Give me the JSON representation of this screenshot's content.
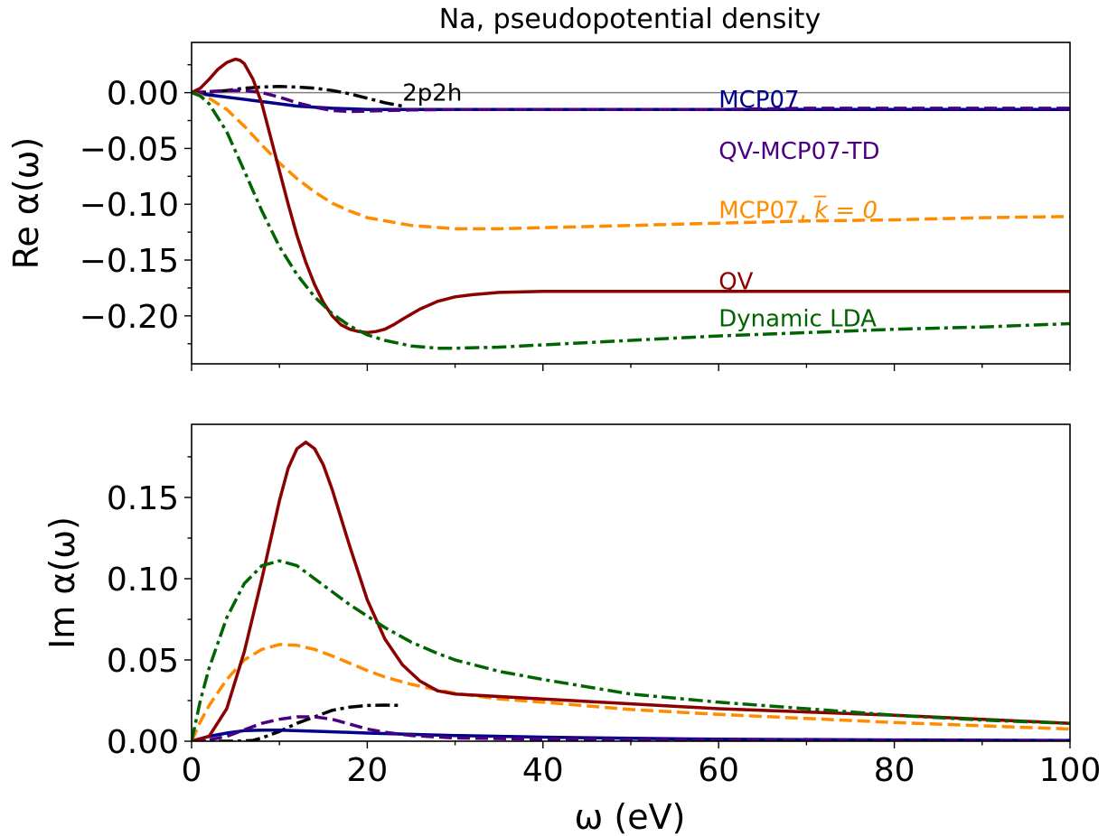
{
  "chart_data": {
    "type": "line",
    "title": "Na, pseudopotential density",
    "xlabel": "ω (eV)",
    "xlim": [
      0,
      100
    ],
    "x_ticks": [
      "0",
      "20",
      "40",
      "60",
      "80",
      "100"
    ],
    "colors": {
      "MCP07": "#00008b",
      "QV-MCP07-TD": "#4b0082",
      "MCP07_k0": "#ff8c00",
      "QV": "#8b0000",
      "DynamicLDA": "#006400",
      "2p2h": "#000000",
      "zero_line": "#808080"
    },
    "panels": [
      {
        "id": "re",
        "ylabel": "Re α(ω)",
        "ylim": [
          -0.243,
          0.045
        ],
        "y_ticks": [
          "0.00",
          "−0.05",
          "−0.10",
          "−0.15",
          "−0.20"
        ],
        "y_tick_values": [
          0.0,
          -0.05,
          -0.1,
          -0.15,
          -0.2
        ],
        "zero_line": true,
        "series": [
          {
            "key": "2p2h",
            "dash": "dashdot",
            "x": [
              0,
              2,
              4,
              6,
              8,
              10,
              12,
              14,
              16,
              18,
              20,
              22,
              24
            ],
            "y": [
              0,
              0.0005,
              0.002,
              0.004,
              0.005,
              0.0055,
              0.005,
              0.004,
              0.002,
              -0.001,
              -0.005,
              -0.009,
              -0.012
            ]
          },
          {
            "key": "MCP07",
            "dash": "solid",
            "x": [
              0,
              2,
              5,
              8,
              10,
              12,
              14,
              16,
              18,
              20,
              25,
              30,
              40,
              50,
              60,
              70,
              80,
              90,
              100
            ],
            "y": [
              0,
              -0.002,
              -0.005,
              -0.008,
              -0.01,
              -0.012,
              -0.013,
              -0.014,
              -0.0145,
              -0.015,
              -0.015,
              -0.015,
              -0.015,
              -0.015,
              -0.015,
              -0.015,
              -0.015,
              -0.015,
              -0.015
            ]
          },
          {
            "key": "QV-MCP07-TD",
            "dash": "dashed",
            "x": [
              0,
              2,
              4,
              6,
              8,
              10,
              12,
              14,
              16,
              18,
              20,
              25,
              30,
              40,
              50,
              60,
              70,
              80,
              90,
              100
            ],
            "y": [
              0,
              0.001,
              0.002,
              0.002,
              0.0,
              -0.004,
              -0.009,
              -0.013,
              -0.016,
              -0.017,
              -0.0165,
              -0.0155,
              -0.015,
              -0.015,
              -0.015,
              -0.015,
              -0.014,
              -0.014,
              -0.014,
              -0.014
            ]
          },
          {
            "key": "MCP07_k0",
            "dash": "dashed",
            "x": [
              0,
              2,
              4,
              6,
              8,
              10,
              12,
              14,
              16,
              18,
              20,
              25,
              30,
              35,
              40,
              50,
              60,
              70,
              80,
              90,
              100
            ],
            "y": [
              0,
              -0.005,
              -0.015,
              -0.03,
              -0.047,
              -0.063,
              -0.077,
              -0.089,
              -0.099,
              -0.106,
              -0.112,
              -0.119,
              -0.122,
              -0.122,
              -0.121,
              -0.119,
              -0.117,
              -0.115,
              -0.114,
              -0.112,
              -0.111
            ]
          },
          {
            "key": "QV",
            "dash": "solid",
            "x": [
              0,
              1,
              2,
              3,
              4,
              5,
              5.5,
              6,
              7,
              8,
              9,
              10,
              11,
              12,
              13,
              14,
              15,
              16,
              17,
              18,
              19,
              20,
              21,
              22,
              23,
              24,
              26,
              28,
              30,
              32,
              35,
              40,
              50,
              60,
              70,
              80,
              90,
              100
            ],
            "y": [
              0,
              0.004,
              0.012,
              0.021,
              0.027,
              0.03,
              0.029,
              0.026,
              0.012,
              -0.01,
              -0.04,
              -0.07,
              -0.1,
              -0.128,
              -0.152,
              -0.172,
              -0.188,
              -0.2,
              -0.208,
              -0.212,
              -0.214,
              -0.215,
              -0.214,
              -0.212,
              -0.208,
              -0.203,
              -0.194,
              -0.187,
              -0.183,
              -0.181,
              -0.179,
              -0.178,
              -0.178,
              -0.178,
              -0.178,
              -0.178,
              -0.178,
              -0.178
            ]
          },
          {
            "key": "DynamicLDA",
            "dash": "dashdot",
            "x": [
              0,
              1,
              2,
              4,
              6,
              8,
              10,
              12,
              14,
              16,
              18,
              20,
              22,
              25,
              28,
              30,
              35,
              40,
              50,
              60,
              70,
              80,
              90,
              100
            ],
            "y": [
              0,
              -0.003,
              -0.01,
              -0.035,
              -0.07,
              -0.106,
              -0.138,
              -0.163,
              -0.183,
              -0.198,
              -0.209,
              -0.217,
              -0.222,
              -0.227,
              -0.229,
              -0.229,
              -0.228,
              -0.226,
              -0.222,
              -0.218,
              -0.215,
              -0.212,
              -0.21,
              -0.207
            ]
          }
        ],
        "labels": [
          {
            "key": "2p2h",
            "text": "2p2h",
            "x": 24,
            "y": 0.0
          },
          {
            "key": "MCP07",
            "text": "MCP07",
            "x": 60,
            "y": -0.006
          },
          {
            "key": "QV-MCP07-TD",
            "text": "QV-MCP07-TD",
            "x": 60,
            "y": -0.052
          },
          {
            "key": "MCP07_k0",
            "text": "MCP07, ",
            "math": "k̅ = 0",
            "x": 60,
            "y": -0.105
          },
          {
            "key": "QV",
            "text": "QV",
            "x": 60,
            "y": -0.169
          },
          {
            "key": "DynamicLDA",
            "text": "Dynamic LDA",
            "x": 60,
            "y": -0.202
          }
        ]
      },
      {
        "id": "im",
        "ylabel": "Im α(ω)",
        "ylim": [
          0.0,
          0.195
        ],
        "y_ticks": [
          "0.00",
          "0.05",
          "0.10",
          "0.15"
        ],
        "y_tick_values": [
          0.0,
          0.05,
          0.1,
          0.15
        ],
        "zero_line": false,
        "series": [
          {
            "key": "2p2h",
            "dash": "dashdot",
            "x": [
              0,
              5,
              7,
              8,
              10,
              12,
              14,
              16,
              18,
              20,
              22,
              24
            ],
            "y": [
              0,
              0,
              0.0005,
              0.002,
              0.006,
              0.011,
              0.015,
              0.019,
              0.021,
              0.022,
              0.0222,
              0.022
            ]
          },
          {
            "key": "MCP07",
            "dash": "solid",
            "x": [
              0,
              2,
              4,
              6,
              8,
              10,
              15,
              20,
              30,
              40,
              50,
              60,
              80,
              100
            ],
            "y": [
              0,
              0.003,
              0.005,
              0.0065,
              0.0068,
              0.0068,
              0.006,
              0.005,
              0.0035,
              0.0025,
              0.0018,
              0.0012,
              0.0008,
              0.0005
            ]
          },
          {
            "key": "QV-MCP07-TD",
            "dash": "dashed",
            "x": [
              0,
              2,
              4,
              6,
              8,
              10,
              12,
              14,
              16,
              18,
              20,
              22,
              25,
              30,
              40,
              60,
              80,
              100
            ],
            "y": [
              0,
              0.0008,
              0.003,
              0.007,
              0.011,
              0.0135,
              0.015,
              0.015,
              0.0135,
              0.0105,
              0.0075,
              0.0055,
              0.0035,
              0.002,
              0.0012,
              0.0008,
              0.0005,
              0.0004
            ]
          },
          {
            "key": "MCP07_k0",
            "dash": "dashed",
            "x": [
              0,
              1,
              2,
              4,
              6,
              8,
              10,
              12,
              14,
              16,
              18,
              20,
              22,
              25,
              28,
              30,
              35,
              40,
              50,
              60,
              70,
              80,
              90,
              100
            ],
            "y": [
              0,
              0.012,
              0.022,
              0.038,
              0.05,
              0.0565,
              0.0595,
              0.059,
              0.0565,
              0.0525,
              0.048,
              0.0435,
              0.0395,
              0.035,
              0.0315,
              0.0295,
              0.026,
              0.024,
              0.0195,
              0.0165,
              0.014,
              0.0115,
              0.0095,
              0.0075
            ]
          },
          {
            "key": "QV",
            "dash": "solid",
            "x": [
              0,
              2,
              4,
              6,
              8,
              10,
              11,
              12,
              13,
              14,
              15,
              16,
              18,
              20,
              22,
              24,
              26,
              28,
              30,
              35,
              40,
              50,
              60,
              70,
              80,
              90,
              100
            ],
            "y": [
              0,
              0.003,
              0.02,
              0.055,
              0.1,
              0.148,
              0.168,
              0.18,
              0.184,
              0.18,
              0.17,
              0.155,
              0.12,
              0.087,
              0.063,
              0.047,
              0.037,
              0.031,
              0.029,
              0.0275,
              0.026,
              0.023,
              0.02,
              0.018,
              0.016,
              0.0135,
              0.011
            ]
          },
          {
            "key": "DynamicLDA",
            "dash": "dashdot",
            "x": [
              0,
              1,
              2,
              4,
              6,
              8,
              10,
              12,
              14,
              16,
              18,
              20,
              22,
              25,
              28,
              30,
              35,
              40,
              50,
              60,
              70,
              80,
              90,
              100
            ],
            "y": [
              0,
              0.025,
              0.045,
              0.076,
              0.097,
              0.108,
              0.111,
              0.108,
              0.1,
              0.092,
              0.084,
              0.077,
              0.07,
              0.061,
              0.054,
              0.05,
              0.043,
              0.038,
              0.029,
              0.024,
              0.02,
              0.016,
              0.013,
              0.011
            ]
          }
        ],
        "labels": []
      }
    ]
  }
}
